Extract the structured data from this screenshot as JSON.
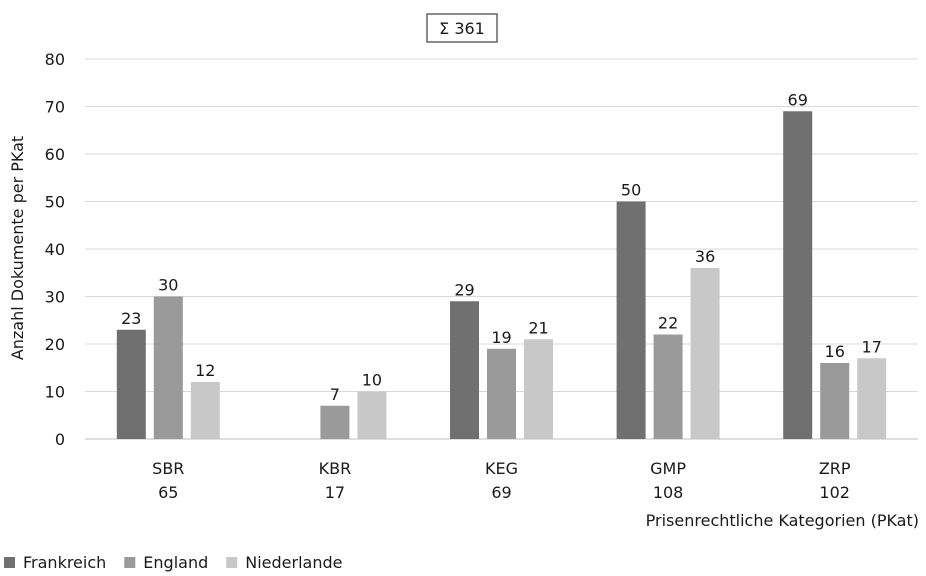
{
  "chart_data": {
    "type": "bar",
    "total_label": "Σ 361",
    "categories": [
      "SBR",
      "KBR",
      "KEG",
      "GMP",
      "ZRP"
    ],
    "category_totals": [
      "65",
      "17",
      "69",
      "108",
      "102"
    ],
    "series": [
      {
        "name": "Frankreich",
        "color": "#707070",
        "values": [
          23,
          null,
          29,
          50,
          69
        ]
      },
      {
        "name": "England",
        "color": "#9a9a9a",
        "values": [
          30,
          7,
          19,
          22,
          16
        ]
      },
      {
        "name": "Niederlande",
        "color": "#c8c8c8",
        "values": [
          12,
          10,
          21,
          36,
          17
        ]
      }
    ],
    "xlabel": "Prisenrechtliche Kategorien (PKat)",
    "ylabel": "Anzahl Dokumente per PKat",
    "ylim": [
      0,
      80
    ],
    "yticks": [
      0,
      10,
      20,
      30,
      40,
      50,
      60,
      70,
      80
    ],
    "grid": true,
    "legend_position": "bottom-left"
  }
}
